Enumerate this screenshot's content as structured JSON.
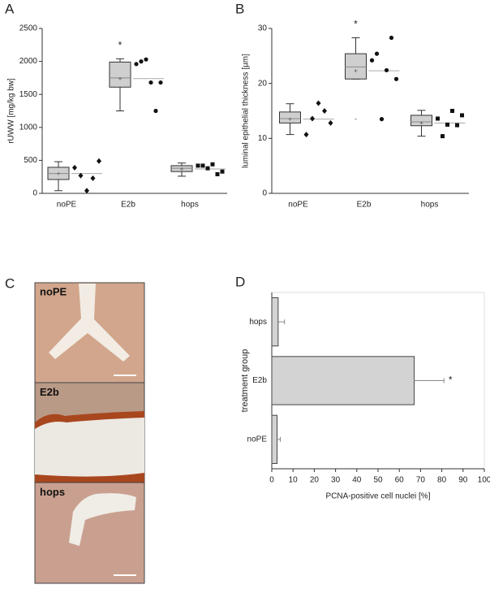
{
  "chart_data": [
    {
      "type": "box",
      "label": "A",
      "ylabel": "rUWW [mg/kg bw]",
      "ylim": [
        0,
        2500
      ],
      "yticks": [
        0,
        500,
        1000,
        1500,
        2000,
        2500
      ],
      "categories": [
        "noPE",
        "E2b",
        "hops"
      ],
      "markers": [
        "diamond",
        "circle",
        "square"
      ],
      "groups": [
        {
          "whisker_low": 40,
          "q1": 210,
          "median": 300,
          "q3": 395,
          "whisker_high": 480,
          "mean": 300,
          "points": [
            390,
            270,
            40,
            230,
            490
          ]
        },
        {
          "whisker_low": 1250,
          "q1": 1610,
          "median": 1750,
          "q3": 1990,
          "whisker_high": 2040,
          "mean": 1740,
          "points": [
            1960,
            2000,
            2030,
            1680,
            1250,
            1680
          ]
        },
        {
          "whisker_low": 260,
          "q1": 330,
          "median": 380,
          "q3": 420,
          "whisker_high": 460,
          "mean": 370,
          "points": [
            420,
            420,
            380,
            440,
            290,
            330
          ]
        }
      ],
      "annotations": [
        {
          "text": "*",
          "category": "E2b"
        }
      ]
    },
    {
      "type": "box",
      "label": "B",
      "ylabel": "luminal epithelial thickness [µm]",
      "ylim": [
        0,
        30
      ],
      "yticks": [
        0,
        10,
        20,
        30
      ],
      "categories": [
        "noPE",
        "E2b",
        "hops"
      ],
      "markers": [
        "diamond",
        "circle",
        "square"
      ],
      "groups": [
        {
          "whisker_low": 10.7,
          "q1": 12.8,
          "median": 13.6,
          "q3": 14.8,
          "whisker_high": 16.3,
          "mean": 13.5,
          "points": [
            10.7,
            13.6,
            16.4,
            15,
            12.8
          ]
        },
        {
          "whisker_low": 20.8,
          "q1": 20.8,
          "median": 23,
          "q3": 25.4,
          "whisker_high": 28.3,
          "mean": 22.3,
          "outliers": [
            13.5
          ],
          "points": [
            24.2,
            25.4,
            13.5,
            22.4,
            28.3,
            20.8
          ]
        },
        {
          "whisker_low": 10.4,
          "q1": 12.3,
          "median": 13,
          "q3": 14.2,
          "whisker_high": 15.1,
          "mean": 12.8,
          "points": [
            13.6,
            10.4,
            12.5,
            15,
            12.4,
            14.2
          ]
        }
      ],
      "annotations": [
        {
          "text": "*",
          "category": "E2b"
        }
      ]
    },
    {
      "type": "image",
      "label": "C",
      "panels": [
        "noPE",
        "E2b",
        "hops"
      ]
    },
    {
      "type": "hbar",
      "label": "D",
      "xlabel": "PCNA-positive cell nuclei [%]",
      "ylabel": "treatment group",
      "categories": [
        "noPE",
        "E2b",
        "hops"
      ],
      "values": [
        2.5,
        67,
        3
      ],
      "errors": [
        1.5,
        14,
        3
      ],
      "xlim": [
        0,
        100
      ],
      "xticks": [
        0,
        10,
        20,
        30,
        40,
        50,
        60,
        70,
        80,
        90,
        100
      ],
      "color": "#d3d3d3",
      "annotations": [
        {
          "text": "*",
          "category": "E2b"
        }
      ]
    }
  ]
}
